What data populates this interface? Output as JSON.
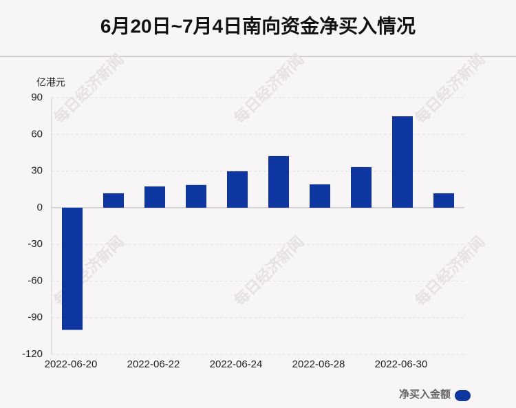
{
  "chart_data": {
    "type": "bar",
    "title": "6月20日~7月4日南向资金净买入情况",
    "y_axis_label": "亿港元",
    "watermark": "每日经济新闻",
    "categories": [
      "2022-06-20",
      null,
      "2022-06-22",
      null,
      "2022-06-24",
      null,
      "2022-06-28",
      null,
      "2022-06-30",
      null
    ],
    "series": [
      {
        "name": "净买入金额",
        "color": "#0d36a0",
        "values": [
          -100,
          11.8,
          17.4,
          18.6,
          29.8,
          42.2,
          19.1,
          33.2,
          74.8,
          11.8
        ]
      }
    ],
    "ylim": [
      -120,
      90
    ],
    "yticks": [
      -120,
      -90,
      -60,
      -30,
      0,
      30,
      60,
      90
    ],
    "grid": true,
    "legend": "bottom-right"
  }
}
